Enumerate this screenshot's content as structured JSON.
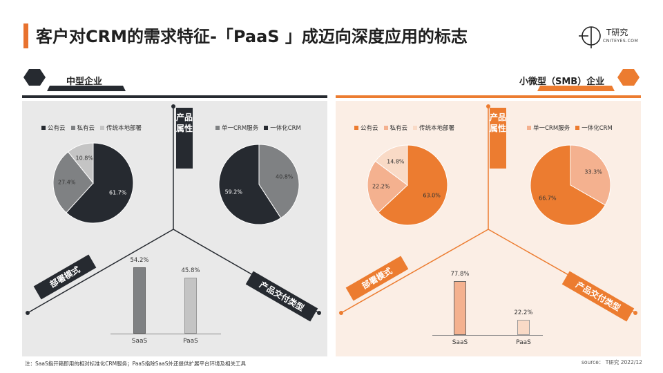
{
  "title": "客户对CRM的需求特征-「PaaS 」成迈向深度应用的标志",
  "logo": {
    "name": "T研究",
    "sub": "CNITEYES.COM"
  },
  "colors": {
    "accent": "#e8722f",
    "dark": "#262a30",
    "grey": "#7f8183",
    "lightgrey": "#c4c4c4",
    "orange": "#ec7c30",
    "lightorange": "#f4b18f",
    "paleorange": "#f9dac6"
  },
  "left": {
    "segment": "中型企业",
    "attr_label": "产品属性",
    "deploy_label": "部署模式",
    "delivery_label": "产品交付类型"
  },
  "right": {
    "segment": "小微型（SMB）企业",
    "attr_label": "产品属性",
    "deploy_label": "部署模式",
    "delivery_label": "产品交付类型"
  },
  "chart_data": [
    {
      "type": "pie",
      "panel": "中型企业",
      "group": "部署模式",
      "legend": [
        "公有云",
        "私有云",
        "传统本地部署"
      ],
      "values": [
        61.7,
        27.4,
        10.8
      ],
      "labels": [
        "61.7%",
        "27.4%",
        "10.8%"
      ]
    },
    {
      "type": "pie",
      "panel": "中型企业",
      "group": "产品属性",
      "legend": [
        "单一CRM服务",
        "一体化CRM"
      ],
      "values": [
        40.8,
        59.2
      ],
      "labels": [
        "40.8%",
        "59.2%"
      ]
    },
    {
      "type": "bar",
      "panel": "中型企业",
      "group": "产品交付类型",
      "categories": [
        "SaaS",
        "PaaS"
      ],
      "values": [
        54.2,
        45.8
      ],
      "labels": [
        "54.2%",
        "45.8%"
      ]
    },
    {
      "type": "pie",
      "panel": "小微型（SMB）企业",
      "group": "部署模式",
      "legend": [
        "公有云",
        "私有云",
        "传统本地部署"
      ],
      "values": [
        63.0,
        22.2,
        14.8
      ],
      "labels": [
        "63.0%",
        "22.2%",
        "14.8%"
      ]
    },
    {
      "type": "pie",
      "panel": "小微型（SMB）企业",
      "group": "产品属性",
      "legend": [
        "单一CRM服务",
        "一体化CRM"
      ],
      "values": [
        33.3,
        66.7
      ],
      "labels": [
        "33.3%",
        "66.7%"
      ]
    },
    {
      "type": "bar",
      "panel": "小微型（SMB）企业",
      "group": "产品交付类型",
      "categories": [
        "SaaS",
        "PaaS"
      ],
      "values": [
        77.8,
        22.2
      ],
      "labels": [
        "77.8%",
        "22.2%"
      ]
    }
  ],
  "note": "注：SaaS指开箱即用的相对标准化CRM服务；PaaS指除SaaS外还提供扩展平台环境及相关工具",
  "source": "source： T研究 2022/12"
}
